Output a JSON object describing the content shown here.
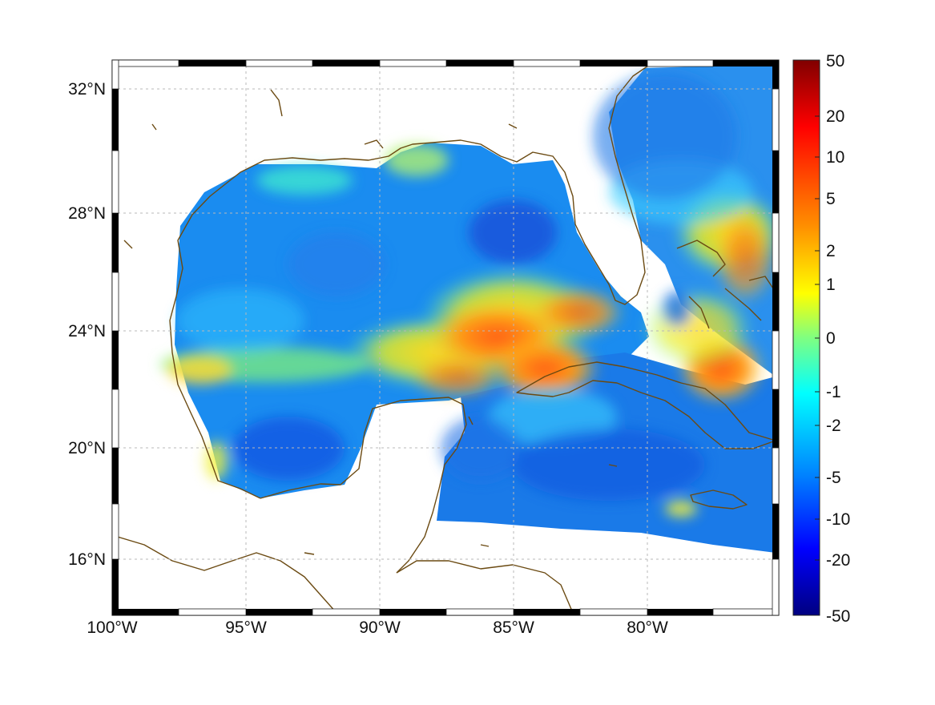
{
  "map": {
    "lon_ticks": [
      "100°W",
      "95°W",
      "90°W",
      "85°W",
      "80°W"
    ],
    "lat_ticks": [
      "32°N",
      "28°N",
      "24°N",
      "20°N",
      "16°N"
    ],
    "extent": {
      "lon": [
        -100,
        -75
      ],
      "lat": [
        14.2,
        33
      ]
    },
    "coast_color": "#6b4a12",
    "grid": "dotted"
  },
  "colorbar": {
    "labels": [
      "50",
      "20",
      "10",
      "5",
      "2",
      "1",
      "0",
      "-1",
      "-2",
      "-5",
      "-10",
      "-20",
      "-50"
    ],
    "scale": "nonlinear",
    "colormap": "jet",
    "range": [
      -50,
      50
    ]
  }
}
